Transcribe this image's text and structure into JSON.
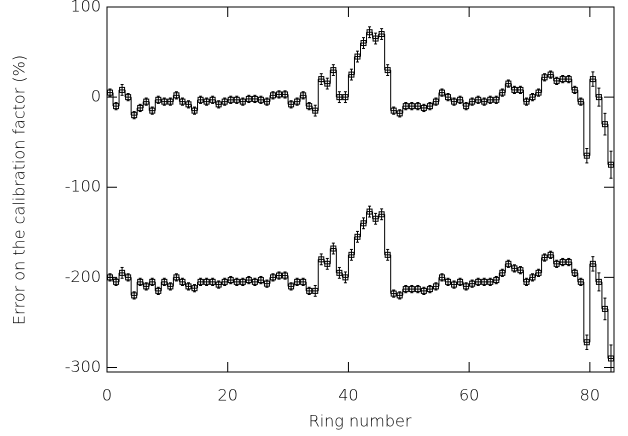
{
  "chart_data": {
    "type": "step",
    "xlabel": "Ring number",
    "ylabel": "Error on the calibration factor (%)",
    "color": "#000000",
    "xlim": [
      0,
      84
    ],
    "xticks": [
      0,
      20,
      40,
      60,
      80
    ],
    "ylim": [
      -305,
      100
    ],
    "yticks": [
      -300,
      -200,
      -100,
      0,
      100
    ],
    "x": [
      0,
      1,
      2,
      3,
      4,
      5,
      6,
      7,
      8,
      9,
      10,
      11,
      12,
      13,
      14,
      15,
      16,
      17,
      18,
      19,
      20,
      21,
      22,
      23,
      24,
      25,
      26,
      27,
      28,
      29,
      30,
      31,
      32,
      33,
      34,
      35,
      36,
      37,
      38,
      39,
      40,
      41,
      42,
      43,
      44,
      45,
      46,
      47,
      48,
      49,
      50,
      51,
      52,
      53,
      54,
      55,
      56,
      57,
      58,
      59,
      60,
      61,
      62,
      63,
      64,
      65,
      66,
      67,
      68,
      69,
      70,
      71,
      72,
      73,
      74,
      75,
      76,
      77,
      78,
      79,
      80,
      81,
      82,
      83
    ],
    "series": [
      {
        "values": [
          5,
          -10,
          8,
          0,
          -20,
          -12,
          -5,
          -15,
          -3,
          -5,
          -5,
          2,
          -5,
          -8,
          -15,
          -3,
          -5,
          -3,
          -8,
          -5,
          -3,
          -3,
          -5,
          -2,
          -2,
          -3,
          -5,
          2,
          3,
          3,
          -8,
          -5,
          2,
          -10,
          -15,
          20,
          15,
          30,
          0,
          0,
          25,
          45,
          60,
          72,
          65,
          70,
          30,
          -15,
          -18,
          -10,
          -10,
          -10,
          -12,
          -10,
          -5,
          5,
          0,
          -5,
          -3,
          -10,
          -5,
          -3,
          -5,
          -3,
          -3,
          5,
          15,
          8,
          8,
          -5,
          0,
          5,
          22,
          25,
          18,
          20,
          20,
          8,
          -5,
          -65,
          20,
          0,
          -30,
          -75
        ],
        "errors": [
          4,
          4,
          6,
          4,
          4,
          4,
          4,
          4,
          4,
          4,
          4,
          4,
          4,
          4,
          4,
          4,
          4,
          4,
          4,
          4,
          4,
          4,
          4,
          4,
          4,
          4,
          4,
          4,
          4,
          4,
          4,
          4,
          4,
          4,
          6,
          6,
          6,
          6,
          6,
          6,
          6,
          6,
          6,
          6,
          6,
          6,
          6,
          4,
          4,
          4,
          4,
          4,
          4,
          4,
          4,
          4,
          4,
          4,
          4,
          4,
          4,
          4,
          4,
          4,
          4,
          4,
          4,
          4,
          4,
          4,
          4,
          4,
          4,
          4,
          4,
          4,
          4,
          4,
          4,
          8,
          8,
          10,
          12,
          15
        ]
      },
      {
        "values": [
          -200,
          -205,
          -195,
          -200,
          -220,
          -205,
          -210,
          -205,
          -215,
          -205,
          -210,
          -200,
          -205,
          -210,
          -212,
          -205,
          -205,
          -205,
          -208,
          -205,
          -203,
          -205,
          -205,
          -203,
          -205,
          -203,
          -207,
          -200,
          -198,
          -198,
          -210,
          -205,
          -205,
          -215,
          -215,
          -180,
          -185,
          -168,
          -195,
          -200,
          -175,
          -155,
          -140,
          -127,
          -135,
          -130,
          -175,
          -218,
          -220,
          -213,
          -213,
          -213,
          -215,
          -213,
          -210,
          -200,
          -205,
          -208,
          -205,
          -210,
          -207,
          -205,
          -205,
          -205,
          -203,
          -195,
          -185,
          -190,
          -192,
          -205,
          -200,
          -195,
          -178,
          -175,
          -185,
          -183,
          -183,
          -195,
          -205,
          -272,
          -185,
          -205,
          -235,
          -290
        ],
        "errors": [
          4,
          4,
          6,
          4,
          4,
          4,
          4,
          4,
          4,
          4,
          4,
          4,
          4,
          4,
          4,
          4,
          4,
          4,
          4,
          4,
          4,
          4,
          4,
          4,
          4,
          4,
          4,
          4,
          4,
          4,
          4,
          4,
          4,
          4,
          6,
          6,
          6,
          6,
          6,
          6,
          6,
          6,
          6,
          6,
          6,
          6,
          6,
          4,
          4,
          4,
          4,
          4,
          4,
          4,
          4,
          4,
          4,
          4,
          4,
          4,
          4,
          4,
          4,
          4,
          4,
          4,
          4,
          4,
          4,
          4,
          4,
          4,
          4,
          4,
          4,
          4,
          4,
          4,
          4,
          8,
          8,
          10,
          12,
          15
        ]
      }
    ]
  }
}
